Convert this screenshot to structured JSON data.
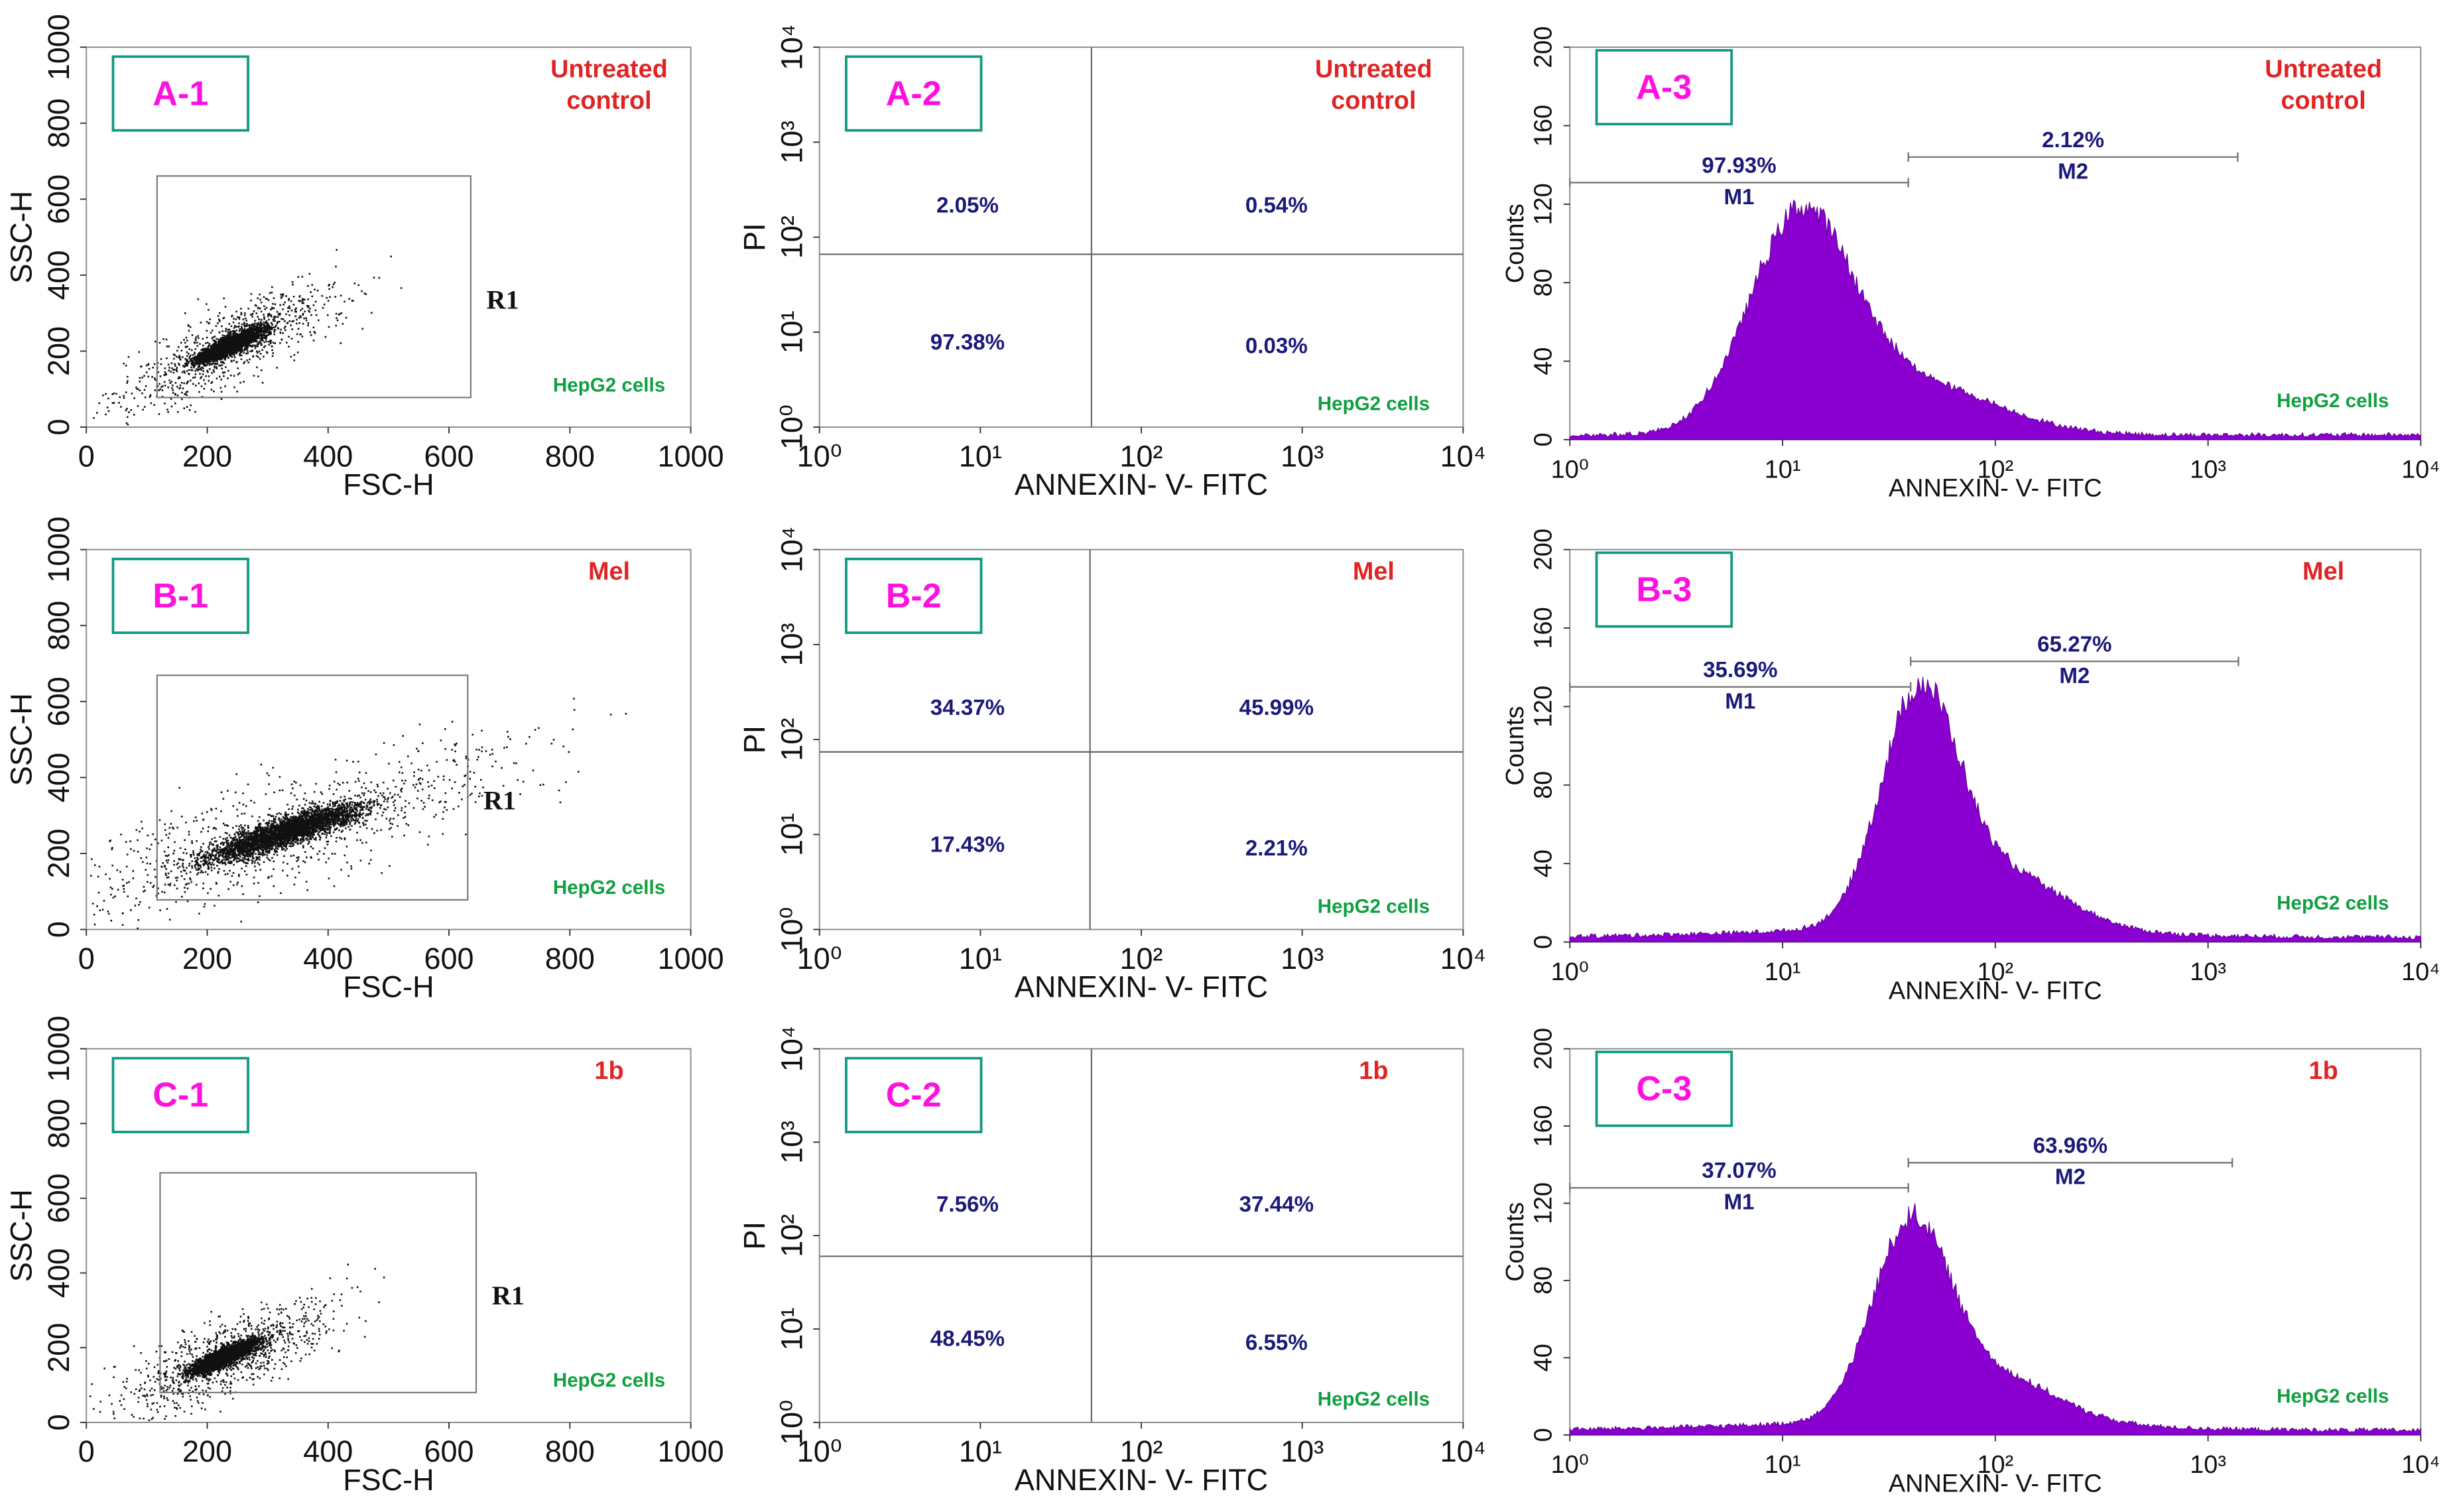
{
  "chart_data": [
    {
      "type": "scatter",
      "panel": "A-1",
      "condition": [
        "Untreated",
        "control"
      ],
      "cells": "HepG2 cells",
      "xlabel": "FSC-H",
      "ylabel": "SSC-H",
      "xlim": [
        0,
        1000
      ],
      "ylim": [
        0,
        1000
      ],
      "xticks": [
        0,
        200,
        400,
        600,
        800,
        1000
      ],
      "yticks": [
        0,
        200,
        400,
        600,
        800,
        1000
      ],
      "gate": {
        "label": "R1",
        "x": [
          117,
          636
        ],
        "y": [
          78,
          661
        ]
      }
    },
    {
      "type": "quadrant",
      "panel": "A-2",
      "condition": [
        "Untreated",
        "control"
      ],
      "cells": "HepG2 cells",
      "xlabel": "ANNEXIN- V- FITC",
      "ylabel": "PI",
      "xscale": "log",
      "yscale": "log",
      "xlim": [
        1,
        10000
      ],
      "ylim": [
        1,
        10000
      ],
      "xticks": [
        {
          "value": 1,
          "label": "10⁰"
        },
        {
          "value": 10,
          "label": "10¹"
        },
        {
          "value": 100,
          "label": "10²"
        },
        {
          "value": 1000,
          "label": "10³"
        },
        {
          "value": 10000,
          "label": "10⁴"
        }
      ],
      "yticks": [
        {
          "value": 1,
          "label": "10⁰"
        },
        {
          "value": 10,
          "label": "10¹"
        },
        {
          "value": 100,
          "label": "10²"
        },
        {
          "value": 1000,
          "label": "10³"
        },
        {
          "value": 10000,
          "label": "10⁴"
        }
      ],
      "divider": {
        "x": 49,
        "y": 66
      },
      "quadrants": {
        "upper_left": "2.05%",
        "upper_right": "0.54%",
        "lower_left": "97.38%",
        "lower_right": "0.03%"
      }
    },
    {
      "type": "histogram",
      "panel": "A-3",
      "condition": [
        "Untreated",
        "control"
      ],
      "cells": "HepG2 cells",
      "xlabel": "ANNEXIN- V- FITC",
      "ylabel": "Counts",
      "xscale": "log",
      "xlim": [
        1,
        10000
      ],
      "ylim": [
        0,
        200
      ],
      "xticks": [
        {
          "value": 1,
          "label": "10⁰"
        },
        {
          "value": 10,
          "label": "10¹"
        },
        {
          "value": 100,
          "label": "10²"
        },
        {
          "value": 1000,
          "label": "10³"
        },
        {
          "value": 10000,
          "label": "10⁴"
        }
      ],
      "yticks": [
        0,
        40,
        80,
        120,
        160,
        200
      ],
      "markers": [
        {
          "name": "M1",
          "label": "97.93%",
          "x": [
            1,
            39
          ],
          "y": 131
        },
        {
          "name": "M2",
          "label": "2.12%",
          "x": [
            39,
            1380
          ],
          "y": 144
        }
      ]
    },
    {
      "type": "scatter",
      "panel": "B-1",
      "condition": [
        "Mel"
      ],
      "cells": "HepG2 cells",
      "xlabel": "FSC-H",
      "ylabel": "SSC-H",
      "xlim": [
        0,
        1000
      ],
      "ylim": [
        0,
        1000
      ],
      "xticks": [
        0,
        200,
        400,
        600,
        800,
        1000
      ],
      "yticks": [
        0,
        200,
        400,
        600,
        800,
        1000
      ],
      "gate": {
        "label": "R1",
        "x": [
          117,
          631
        ],
        "y": [
          78,
          669
        ]
      }
    },
    {
      "type": "quadrant",
      "panel": "B-2",
      "condition": [
        "Mel"
      ],
      "cells": "HepG2 cells",
      "xlabel": "ANNEXIN- V- FITC",
      "ylabel": "PI",
      "xscale": "log",
      "yscale": "log",
      "xlim": [
        1,
        10000
      ],
      "ylim": [
        1,
        10000
      ],
      "xticks": [
        {
          "value": 1,
          "label": "10⁰"
        },
        {
          "value": 10,
          "label": "10¹"
        },
        {
          "value": 100,
          "label": "10²"
        },
        {
          "value": 1000,
          "label": "10³"
        },
        {
          "value": 10000,
          "label": "10⁴"
        }
      ],
      "yticks": [
        {
          "value": 1,
          "label": "10⁰"
        },
        {
          "value": 10,
          "label": "10¹"
        },
        {
          "value": 100,
          "label": "10²"
        },
        {
          "value": 1000,
          "label": "10³"
        },
        {
          "value": 10000,
          "label": "10⁴"
        }
      ],
      "divider": {
        "x": 48,
        "y": 74
      },
      "quadrants": {
        "upper_left": "34.37%",
        "upper_right": "45.99%",
        "lower_left": "17.43%",
        "lower_right": "2.21%"
      }
    },
    {
      "type": "histogram",
      "panel": "B-3",
      "condition": [
        "Mel"
      ],
      "cells": "HepG2 cells",
      "xlabel": "ANNEXIN- V- FITC",
      "ylabel": "Counts",
      "xscale": "log",
      "xlim": [
        1,
        10000
      ],
      "ylim": [
        0,
        200
      ],
      "xticks": [
        {
          "value": 1,
          "label": "10⁰"
        },
        {
          "value": 10,
          "label": "10¹"
        },
        {
          "value": 100,
          "label": "10²"
        },
        {
          "value": 1000,
          "label": "10³"
        },
        {
          "value": 10000,
          "label": "10⁴"
        }
      ],
      "yticks": [
        0,
        40,
        80,
        120,
        160,
        200
      ],
      "markers": [
        {
          "name": "M1",
          "label": "35.69%",
          "x": [
            1,
            40
          ],
          "y": 130
        },
        {
          "name": "M2",
          "label": "65.27%",
          "x": [
            40,
            1390
          ],
          "y": 143
        }
      ]
    },
    {
      "type": "scatter",
      "panel": "C-1",
      "condition": [
        "1b"
      ],
      "cells": "HepG2 cells",
      "xlabel": "FSC-H",
      "ylabel": "SSC-H",
      "xlim": [
        0,
        1000
      ],
      "ylim": [
        0,
        1000
      ],
      "xticks": [
        0,
        200,
        400,
        600,
        800,
        1000
      ],
      "yticks": [
        0,
        200,
        400,
        600,
        800,
        1000
      ],
      "gate": {
        "label": "R1",
        "x": [
          122,
          645
        ],
        "y": [
          80,
          668
        ]
      }
    },
    {
      "type": "quadrant",
      "panel": "C-2",
      "condition": [
        "1b"
      ],
      "cells": "HepG2 cells",
      "xlabel": "ANNEXIN- V- FITC",
      "ylabel": "PI",
      "xscale": "log",
      "yscale": "log",
      "xlim": [
        1,
        10000
      ],
      "ylim": [
        1,
        10000
      ],
      "xticks": [
        {
          "value": 1,
          "label": "10⁰"
        },
        {
          "value": 10,
          "label": "10¹"
        },
        {
          "value": 100,
          "label": "10²"
        },
        {
          "value": 1000,
          "label": "10³"
        },
        {
          "value": 10000,
          "label": "10⁴"
        }
      ],
      "yticks": [
        {
          "value": 1,
          "label": "10⁰"
        },
        {
          "value": 10,
          "label": "10¹"
        },
        {
          "value": 100,
          "label": "10²"
        },
        {
          "value": 1000,
          "label": "10³"
        },
        {
          "value": 10000,
          "label": "10⁴"
        }
      ],
      "divider": {
        "x": 49,
        "y": 60
      },
      "quadrants": {
        "upper_left": "7.56%",
        "upper_right": "37.44%",
        "lower_left": "48.45%",
        "lower_right": "6.55%"
      }
    },
    {
      "type": "histogram",
      "panel": "C-3",
      "condition": [
        "1b"
      ],
      "cells": "HepG2 cells",
      "xlabel": "ANNEXIN- V- FITC",
      "ylabel": "Counts",
      "xscale": "log",
      "xlim": [
        1,
        10000
      ],
      "ylim": [
        0,
        200
      ],
      "xticks": [
        {
          "value": 1,
          "label": "10⁰"
        },
        {
          "value": 10,
          "label": "10¹"
        },
        {
          "value": 100,
          "label": "10²"
        },
        {
          "value": 1000,
          "label": "10³"
        },
        {
          "value": 10000,
          "label": "10⁴"
        }
      ],
      "yticks": [
        0,
        40,
        80,
        120,
        160,
        200
      ],
      "markers": [
        {
          "name": "M1",
          "label": "37.07%",
          "x": [
            1,
            39
          ],
          "y": 128
        },
        {
          "name": "M2",
          "label": "63.96%",
          "x": [
            39,
            1300
          ],
          "y": 141
        }
      ]
    }
  ]
}
